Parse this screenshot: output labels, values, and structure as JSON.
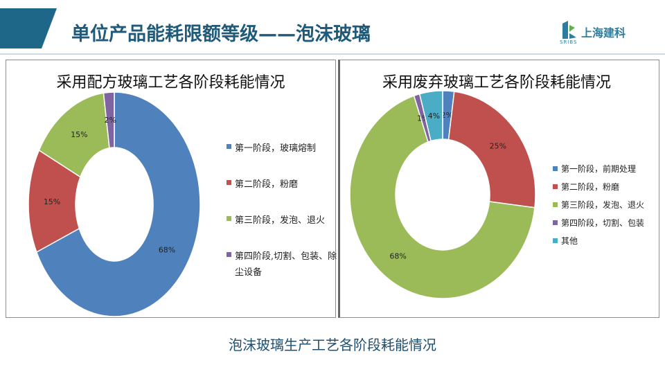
{
  "header": {
    "title": "单位产品能耗限额等级——泡沫玻璃"
  },
  "logo": {
    "name": "上海建科",
    "sub": "SRIBS"
  },
  "caption": "泡沫玻璃生产工艺各阶段耗能情况",
  "colors": {
    "blue": "#4f81bd",
    "red": "#c0504d",
    "green": "#9bbb59",
    "purple": "#8064a2",
    "cyan": "#4bacc6",
    "header": "#1e6788"
  },
  "chart_data": [
    {
      "type": "pie",
      "donut": true,
      "title": "采用配方玻璃工艺各阶段耗能情况",
      "categories": [
        "第一阶段，玻璃熔制",
        "第二阶段，粉磨",
        "第三阶段，发泡、退火",
        "第四阶段,切割、包装、除尘设备"
      ],
      "values": [
        68,
        15,
        15,
        2
      ],
      "labels": [
        "68%",
        "15%",
        "15%",
        "2%"
      ],
      "colors": [
        "#4f81bd",
        "#c0504d",
        "#9bbb59",
        "#8064a2"
      ],
      "legend": "right"
    },
    {
      "type": "pie",
      "donut": true,
      "title": "采用废弃玻璃工艺各阶段耗能情况",
      "categories": [
        "第一阶段，前期处理",
        "第二阶段，粉磨",
        "第三阶段，发泡、退火",
        "第四阶段，切割、包装",
        "其他"
      ],
      "values": [
        2,
        25,
        68,
        1,
        4
      ],
      "labels": [
        "2%",
        "25%",
        "68%",
        "1%",
        "4%"
      ],
      "colors": [
        "#4f81bd",
        "#c0504d",
        "#9bbb59",
        "#8064a2",
        "#4bacc6"
      ],
      "legend": "right"
    }
  ]
}
